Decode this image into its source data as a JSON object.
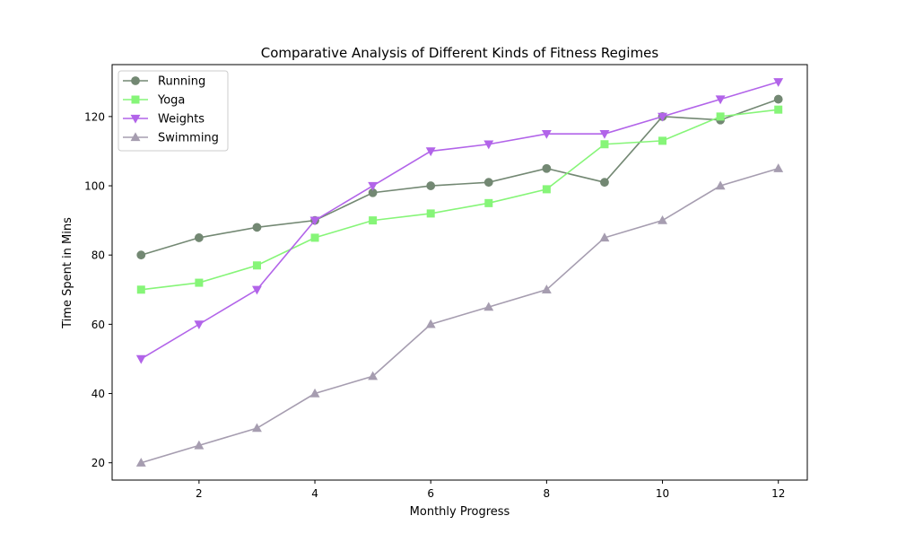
{
  "chart_data": {
    "type": "line",
    "title": "Comparative Analysis of Different Kinds of Fitness Regimes",
    "xlabel": "Monthly Progress",
    "ylabel": "Time Spent in Mins",
    "x": [
      1,
      2,
      3,
      4,
      5,
      6,
      7,
      8,
      9,
      10,
      11,
      12
    ],
    "xlim": [
      0.5,
      12.5
    ],
    "ylim": [
      15,
      135
    ],
    "xticks": [
      2,
      4,
      6,
      8,
      10,
      12
    ],
    "yticks": [
      20,
      40,
      60,
      80,
      100,
      120
    ],
    "grid": false,
    "legend_position": "top-left",
    "series": [
      {
        "name": "Running",
        "color": "#738873",
        "marker": "circle",
        "values": [
          80,
          85,
          88,
          90,
          98,
          100,
          101,
          105,
          101,
          120,
          119,
          125
        ]
      },
      {
        "name": "Yoga",
        "color": "#86f578",
        "marker": "square",
        "values": [
          70,
          72,
          77,
          85,
          90,
          92,
          95,
          99,
          112,
          113,
          120,
          122
        ]
      },
      {
        "name": "Weights",
        "color": "#b264e9",
        "marker": "triangle-down",
        "values": [
          50,
          60,
          70,
          90,
          100,
          110,
          112,
          115,
          115,
          120,
          125,
          130
        ]
      },
      {
        "name": "Swimming",
        "color": "#a69db0",
        "marker": "triangle-up",
        "values": [
          20,
          25,
          30,
          40,
          45,
          60,
          65,
          70,
          85,
          90,
          100,
          105
        ]
      }
    ]
  }
}
